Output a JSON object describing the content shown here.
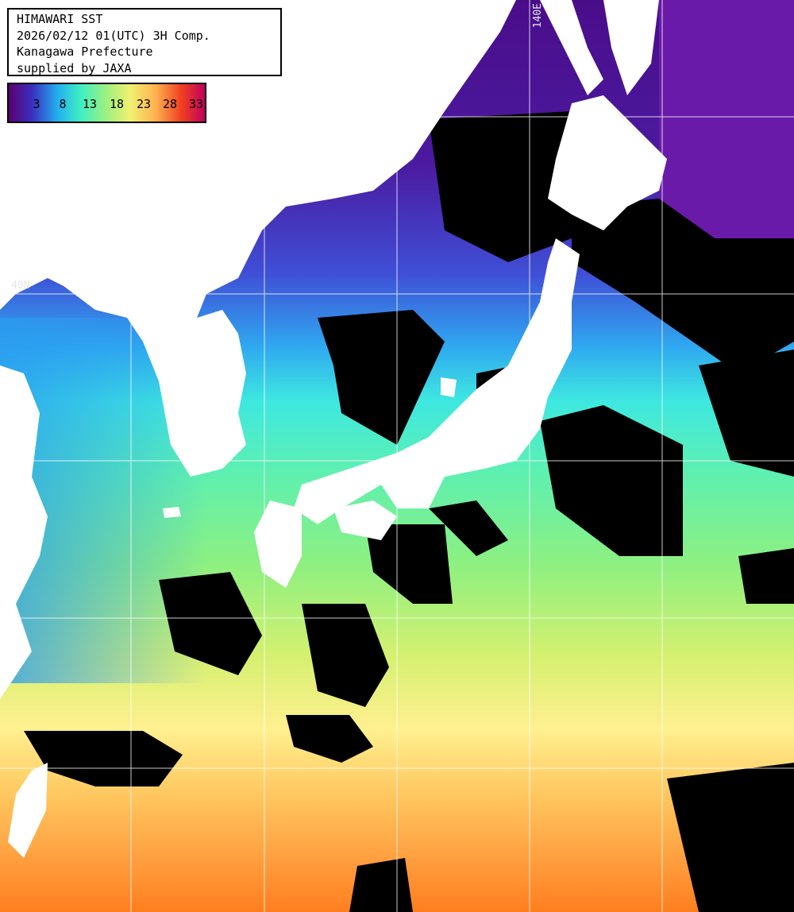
{
  "header": {
    "title": "HIMAWARI SST",
    "datetime": "2026/02/12 01(UTC) 3H Comp.",
    "region": "Kanagawa Prefecture",
    "credit": "supplied by JAXA"
  },
  "legend": {
    "labels": [
      "3",
      "8",
      "13",
      "18",
      "23",
      "28",
      "33"
    ],
    "colors": [
      "#5a0070",
      "#3a50e0",
      "#22d8f0",
      "#5cf0a0",
      "#d8f060",
      "#ffd070",
      "#ff7a20",
      "#e01010",
      "#c00060"
    ]
  },
  "grid_labels": {
    "lat": "40N",
    "lon": "140E"
  },
  "colors": {
    "land": "#ffffff",
    "cloud": "#000000",
    "grid": "#ffffff"
  }
}
